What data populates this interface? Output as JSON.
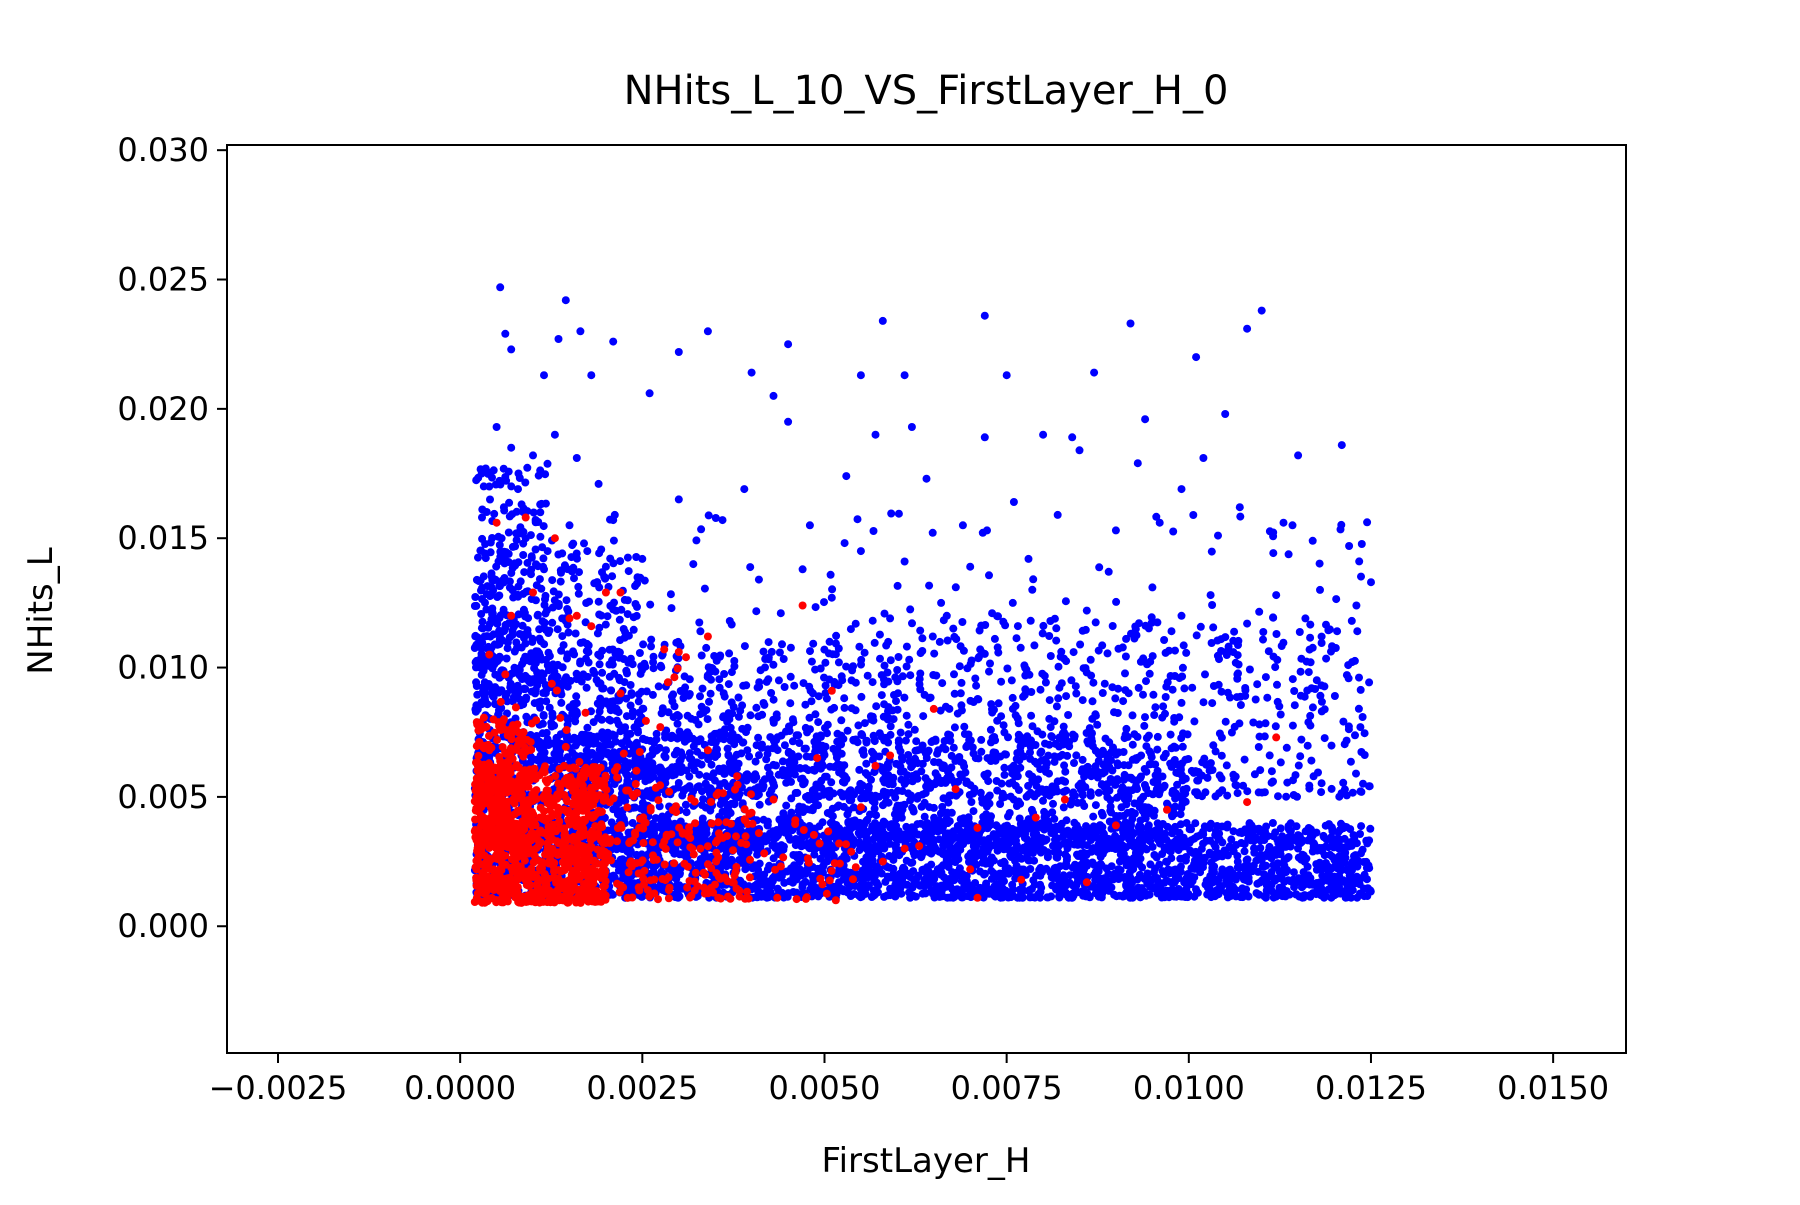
{
  "chart_data": {
    "type": "scatter",
    "title": "NHits_L_10_VS_FirstLayer_H_0",
    "xlabel": "FirstLayer_H",
    "ylabel": "NHits_L",
    "xlim": [
      -0.0032,
      0.016
    ],
    "ylim": [
      -0.0049,
      0.0302
    ],
    "xticks": [
      -0.0025,
      0.0,
      0.0025,
      0.005,
      0.0075,
      0.01,
      0.0125,
      0.015
    ],
    "xtick_labels": [
      "−0.0025",
      "0.0000",
      "0.0025",
      "0.0050",
      "0.0075",
      "0.0100",
      "0.0125",
      "0.0150"
    ],
    "yticks": [
      0.0,
      0.005,
      0.01,
      0.015,
      0.02,
      0.025,
      0.03
    ],
    "ytick_labels": [
      "0.000",
      "0.005",
      "0.010",
      "0.015",
      "0.020",
      "0.025",
      "0.030"
    ],
    "grid": false,
    "legend": "none",
    "series": [
      {
        "color": "#0000ff",
        "points": [
          [
            0.00055,
            0.0247
          ],
          [
            0.00145,
            0.0242
          ],
          [
            0.00062,
            0.0229
          ],
          [
            0.0007,
            0.0223
          ],
          [
            0.00135,
            0.0227
          ],
          [
            0.00165,
            0.023
          ],
          [
            0.0021,
            0.0226
          ],
          [
            0.003,
            0.0222
          ],
          [
            0.0034,
            0.023
          ],
          [
            0.0045,
            0.0225
          ],
          [
            0.0058,
            0.0234
          ],
          [
            0.0072,
            0.0236
          ],
          [
            0.0092,
            0.0233
          ],
          [
            0.011,
            0.0238
          ],
          [
            0.0108,
            0.0231
          ],
          [
            0.0101,
            0.022
          ],
          [
            0.0087,
            0.0214
          ],
          [
            0.0061,
            0.0213
          ],
          [
            0.0055,
            0.0213
          ],
          [
            0.004,
            0.0214
          ],
          [
            0.0075,
            0.0213
          ],
          [
            0.0043,
            0.0205
          ],
          [
            0.0026,
            0.0206
          ],
          [
            0.00115,
            0.0213
          ],
          [
            0.0018,
            0.0213
          ],
          [
            0.0045,
            0.0195
          ],
          [
            0.0057,
            0.019
          ],
          [
            0.0062,
            0.0193
          ],
          [
            0.008,
            0.019
          ],
          [
            0.0085,
            0.0184
          ],
          [
            0.0094,
            0.0196
          ],
          [
            0.0105,
            0.0198
          ],
          [
            0.0115,
            0.0182
          ],
          [
            0.0121,
            0.0186
          ],
          [
            0.0102,
            0.0181
          ],
          [
            0.0084,
            0.0189
          ],
          [
            0.0072,
            0.0189
          ],
          [
            0.0064,
            0.0173
          ],
          [
            0.0053,
            0.0174
          ],
          [
            0.0039,
            0.0169
          ],
          [
            0.0093,
            0.0179
          ],
          [
            0.0099,
            0.0169
          ],
          [
            0.0107,
            0.0162
          ],
          [
            0.0113,
            0.0156
          ],
          [
            0.0076,
            0.0164
          ],
          [
            0.003,
            0.0165
          ],
          [
            0.0021,
            0.0157
          ],
          [
            0.0036,
            0.0157
          ],
          [
            0.0048,
            0.0155
          ],
          [
            0.0069,
            0.0155
          ],
          [
            0.0082,
            0.0159
          ],
          [
            0.009,
            0.0153
          ],
          [
            0.0096,
            0.0156
          ],
          [
            0.0104,
            0.0151
          ],
          [
            0.0117,
            0.0149
          ],
          [
            0.0122,
            0.0147
          ],
          [
            0.0125,
            0.0133
          ],
          [
            0.0118,
            0.013
          ],
          [
            0.0112,
            0.0128
          ],
          [
            0.0095,
            0.0131
          ],
          [
            0.0089,
            0.0137
          ],
          [
            0.0078,
            0.0142
          ],
          [
            0.007,
            0.0139
          ],
          [
            0.0061,
            0.0141
          ],
          [
            0.0055,
            0.0145
          ],
          [
            0.0047,
            0.0138
          ],
          [
            0.0041,
            0.0134
          ],
          [
            0.0032,
            0.014
          ],
          [
            0.0025,
            0.0142
          ],
          [
            0.002,
            0.0139
          ],
          [
            0.0017,
            0.0148
          ],
          [
            0.0012,
            0.0145
          ],
          [
            0.0009,
            0.015
          ],
          [
            0.0006,
            0.0162
          ],
          [
            0.0004,
            0.017
          ],
          [
            0.0008,
            0.0175
          ],
          [
            0.0011,
            0.016
          ],
          [
            0.0015,
            0.0155
          ],
          [
            0.0019,
            0.0171
          ],
          [
            0.0007,
            0.0185
          ],
          [
            0.0005,
            0.0193
          ],
          [
            0.0013,
            0.019
          ],
          [
            0.0016,
            0.0181
          ],
          [
            0.0003,
            0.0158
          ],
          [
            0.001,
            0.0182
          ],
          [
            0.0123,
            0.0124
          ],
          [
            0.0116,
            0.0119
          ],
          [
            0.0108,
            0.0117
          ],
          [
            0.0099,
            0.012
          ],
          [
            0.0086,
            0.0122
          ],
          [
            0.0081,
            0.0118
          ],
          [
            0.0073,
            0.0121
          ],
          [
            0.0066,
            0.0125
          ],
          [
            0.0059,
            0.0119
          ],
          [
            0.0051,
            0.0127
          ],
          [
            0.0044,
            0.0121
          ],
          [
            0.0037,
            0.0118
          ],
          [
            0.0029,
            0.0123
          ],
          [
            0.0023,
            0.0126
          ],
          [
            0.0014,
            0.0119
          ]
        ],
        "blobs": [
          {
            "x_range": [
              0.0002,
              0.0125
            ],
            "y_range": [
              0.0011,
              0.004
            ],
            "count": 2600
          },
          {
            "x_range": [
              0.0002,
              0.01
            ],
            "y_range": [
              0.003,
              0.0075
            ],
            "count": 1500
          },
          {
            "x_range": [
              0.0002,
              0.006
            ],
            "y_range": [
              0.005,
              0.011
            ],
            "count": 700
          },
          {
            "x_range": [
              0.0002,
              0.0025
            ],
            "y_range": [
              0.006,
              0.015
            ],
            "count": 450
          },
          {
            "x_range": [
              0.0002,
              0.0012
            ],
            "y_range": [
              0.009,
              0.018
            ],
            "count": 200
          },
          {
            "x_range": [
              0.006,
              0.0125
            ],
            "y_range": [
              0.005,
              0.012
            ],
            "count": 550
          },
          {
            "x_range": [
              0.002,
              0.0125
            ],
            "y_range": [
              0.008,
              0.016
            ],
            "count": 160
          }
        ]
      },
      {
        "color": "#ff0000",
        "points": [
          [
            0.0005,
            0.0156
          ],
          [
            0.0009,
            0.0158
          ],
          [
            0.0013,
            0.015
          ],
          [
            0.0016,
            0.012
          ],
          [
            0.0018,
            0.0116
          ],
          [
            0.002,
            0.0129
          ],
          [
            0.0022,
            0.0129
          ],
          [
            0.0034,
            0.0112
          ],
          [
            0.003,
            0.0106
          ],
          [
            0.0031,
            0.0104
          ],
          [
            0.0028,
            0.0107
          ],
          [
            0.0047,
            0.0124
          ],
          [
            0.0051,
            0.0091
          ],
          [
            0.0065,
            0.0084
          ],
          [
            0.0112,
            0.0073
          ],
          [
            0.0108,
            0.0048
          ],
          [
            0.0097,
            0.0045
          ],
          [
            0.009,
            0.0039
          ],
          [
            0.0083,
            0.0049
          ],
          [
            0.0079,
            0.0042
          ],
          [
            0.0071,
            0.0038
          ],
          [
            0.0068,
            0.0053
          ],
          [
            0.0063,
            0.0031
          ],
          [
            0.0059,
            0.0066
          ],
          [
            0.0057,
            0.0062
          ],
          [
            0.0055,
            0.0046
          ],
          [
            0.0052,
            0.0032
          ],
          [
            0.0049,
            0.0065
          ],
          [
            0.0046,
            0.0041
          ],
          [
            0.0043,
            0.0049
          ],
          [
            0.0041,
            0.0036
          ],
          [
            0.0077,
            0.0018
          ],
          [
            0.0086,
            0.0017
          ],
          [
            0.007,
            0.0022
          ],
          [
            0.0061,
            0.003
          ],
          [
            0.0058,
            0.0025
          ],
          [
            0.0071,
            0.0011
          ],
          [
            0.0038,
            0.0058
          ],
          [
            0.0034,
            0.0068
          ],
          [
            0.0022,
            0.009
          ],
          [
            0.0015,
            0.0119
          ],
          [
            0.001,
            0.0129
          ],
          [
            0.0007,
            0.012
          ],
          [
            0.0004,
            0.0105
          ],
          [
            0.0006,
            0.008
          ]
        ],
        "blobs": [
          {
            "x_range": [
              0.0002,
              0.002
            ],
            "y_range": [
              0.0009,
              0.0062
            ],
            "count": 900
          },
          {
            "x_range": [
              0.0002,
              0.001
            ],
            "y_range": [
              0.003,
              0.008
            ],
            "count": 250
          },
          {
            "x_range": [
              0.0015,
              0.004
            ],
            "y_range": [
              0.001,
              0.0055
            ],
            "count": 200
          },
          {
            "x_range": [
              0.0035,
              0.0055
            ],
            "y_range": [
              0.001,
              0.004
            ],
            "count": 40
          },
          {
            "x_range": [
              0.0002,
              0.003
            ],
            "y_range": [
              0.005,
              0.01
            ],
            "count": 40
          }
        ]
      }
    ]
  }
}
